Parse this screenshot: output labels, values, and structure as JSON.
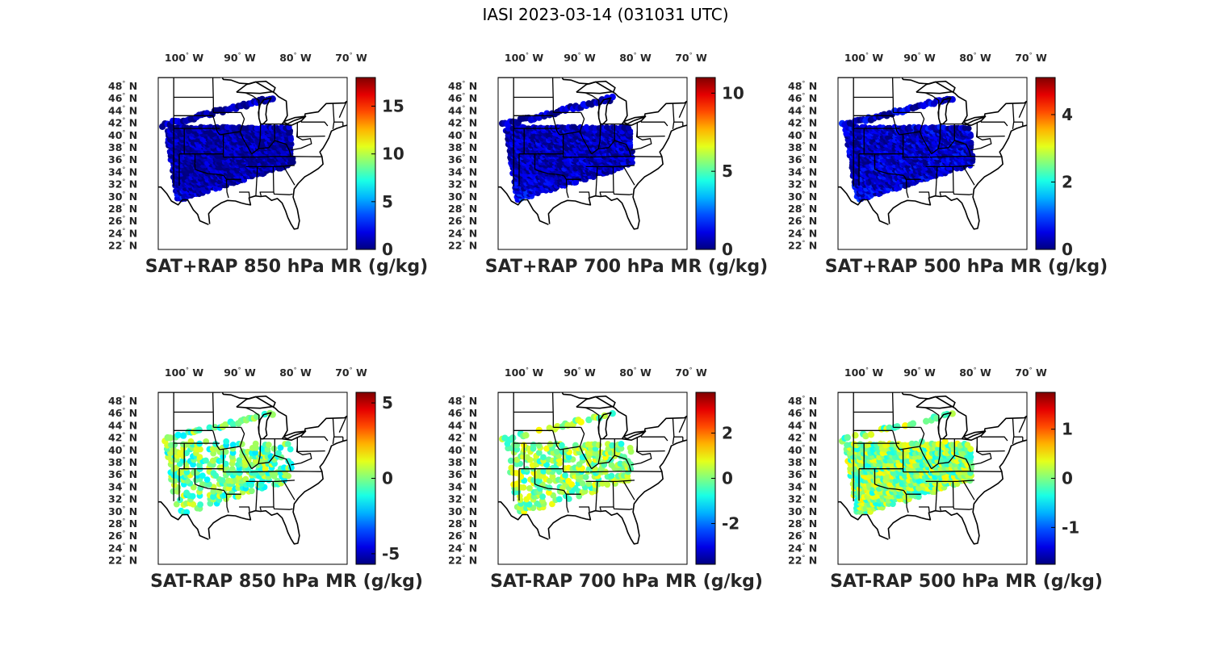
{
  "figure": {
    "title": "IASI 2023-03-14 (031031 UTC)"
  },
  "map_axes": {
    "lon_ticks": [
      {
        "value": 100,
        "label": "100",
        "hemi": "W"
      },
      {
        "value": 90,
        "label": "90",
        "hemi": "W"
      },
      {
        "value": 80,
        "label": "80",
        "hemi": "W"
      },
      {
        "value": 70,
        "label": "70",
        "hemi": "W"
      }
    ],
    "lat_ticks": [
      {
        "value": 48,
        "label": "48",
        "hemi": "N"
      },
      {
        "value": 46,
        "label": "46",
        "hemi": "N"
      },
      {
        "value": 44,
        "label": "44",
        "hemi": "N"
      },
      {
        "value": 42,
        "label": "42",
        "hemi": "N"
      },
      {
        "value": 40,
        "label": "40",
        "hemi": "N"
      },
      {
        "value": 38,
        "label": "38",
        "hemi": "N"
      },
      {
        "value": 36,
        "label": "36",
        "hemi": "N"
      },
      {
        "value": 34,
        "label": "34",
        "hemi": "N"
      },
      {
        "value": 32,
        "label": "32",
        "hemi": "N"
      },
      {
        "value": 30,
        "label": "30",
        "hemi": "N"
      },
      {
        "value": 28,
        "label": "28",
        "hemi": "N"
      },
      {
        "value": 26,
        "label": "26",
        "hemi": "N"
      },
      {
        "value": 24,
        "label": "24",
        "hemi": "N"
      },
      {
        "value": 22,
        "label": "22",
        "hemi": "N"
      }
    ],
    "colormap": "jet"
  },
  "chart_data": [
    {
      "type": "heatmap",
      "xlabel": "SAT+RAP 850 hPa MR (g/kg)",
      "clim": [
        0,
        18
      ],
      "colorbar_ticks": [
        {
          "value": 0,
          "label": "0"
        },
        {
          "value": 5,
          "label": "5"
        },
        {
          "value": 10,
          "label": "10"
        },
        {
          "value": 15,
          "label": "15"
        }
      ],
      "field": {
        "kind": "total",
        "base": 0.7,
        "south_gain": 11,
        "west_gain": 2,
        "noise": 1.5
      }
    },
    {
      "type": "heatmap",
      "xlabel": "SAT+RAP 700 hPa MR (g/kg)",
      "clim": [
        0,
        11
      ],
      "colorbar_ticks": [
        {
          "value": 0,
          "label": "0"
        },
        {
          "value": 5,
          "label": "5"
        },
        {
          "value": 10,
          "label": "10"
        }
      ],
      "field": {
        "kind": "total",
        "base": 0.6,
        "south_gain": 4.5,
        "west_gain": 3,
        "noise": 1.0
      }
    },
    {
      "type": "heatmap",
      "xlabel": "SAT+RAP 500 hPa MR (g/kg)",
      "clim": [
        0,
        5.1
      ],
      "colorbar_ticks": [
        {
          "value": 0,
          "label": "0"
        },
        {
          "value": 2,
          "label": "2"
        },
        {
          "value": 4,
          "label": "4"
        }
      ],
      "field": {
        "kind": "total",
        "base": 0.35,
        "south_gain": 2.0,
        "west_gain": 0.6,
        "noise": 0.5
      }
    },
    {
      "type": "heatmap",
      "xlabel": "SAT-RAP 850 hPa MR (g/kg)",
      "clim": [
        -5.7,
        5.7
      ],
      "colorbar_ticks": [
        {
          "value": -5,
          "label": "-5"
        },
        {
          "value": 0,
          "label": "0"
        },
        {
          "value": 5,
          "label": "5"
        }
      ],
      "field": {
        "kind": "diff",
        "base": -0.3,
        "south_gain": -2.5,
        "west_gain": 1.5,
        "noise": 1.5,
        "sparse": true
      }
    },
    {
      "type": "heatmap",
      "xlabel": "SAT-RAP 700 hPa MR (g/kg)",
      "clim": [
        -3.8,
        3.8
      ],
      "colorbar_ticks": [
        {
          "value": -2,
          "label": "-2"
        },
        {
          "value": 0,
          "label": "0"
        },
        {
          "value": 2,
          "label": "2"
        }
      ],
      "field": {
        "kind": "diff",
        "base": 0.1,
        "south_gain": 0.2,
        "west_gain": 0.5,
        "noise": 0.9,
        "sparse": true
      }
    },
    {
      "type": "heatmap",
      "xlabel": "SAT-RAP 500 hPa MR (g/kg)",
      "clim": [
        -1.75,
        1.75
      ],
      "colorbar_ticks": [
        {
          "value": -1,
          "label": "-1"
        },
        {
          "value": 0,
          "label": "0"
        },
        {
          "value": 1,
          "label": "1"
        }
      ],
      "field": {
        "kind": "diff",
        "base": 0.05,
        "south_gain": 0.1,
        "west_gain": 0.1,
        "noise": 0.45,
        "sparse": false
      }
    }
  ]
}
